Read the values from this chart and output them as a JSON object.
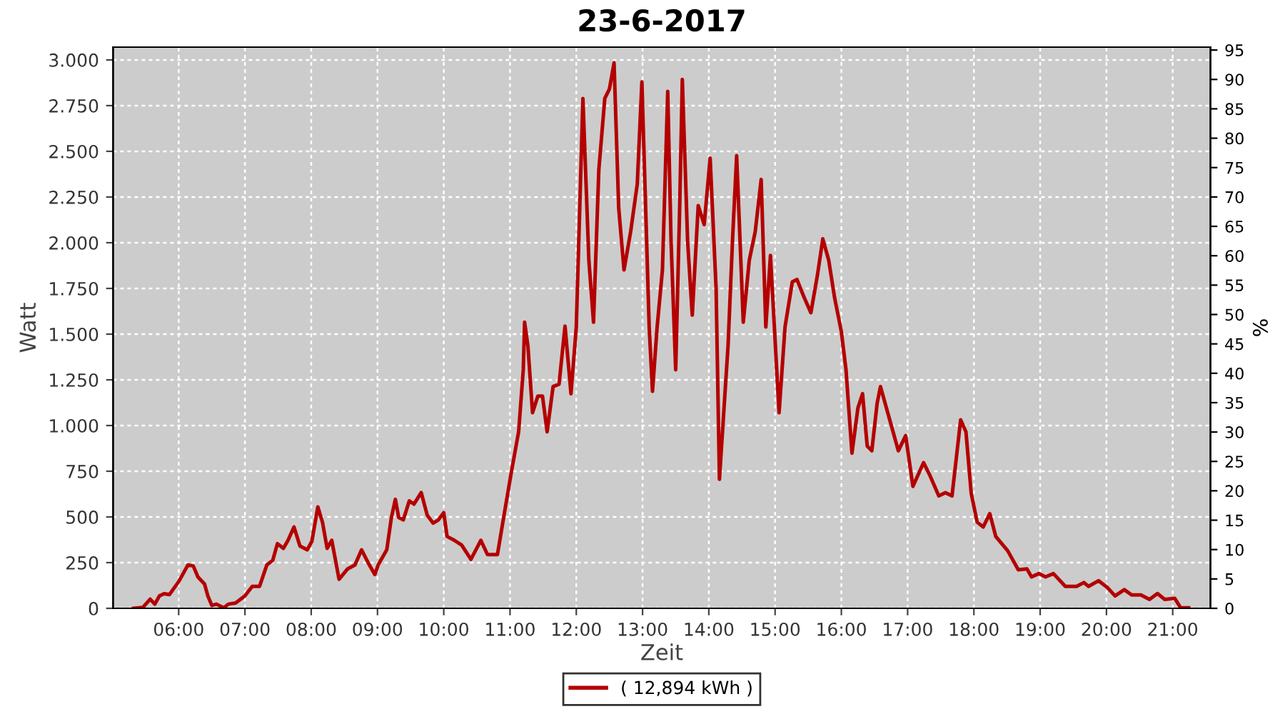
{
  "chart_data": {
    "type": "line",
    "title": "23-6-2017",
    "xlabel": "Zeit",
    "ylabel": "Watt",
    "y2label": "%",
    "xlim": [
      5.01,
      21.57
    ],
    "xticks": [
      {
        "value": 6,
        "label": "06:00"
      },
      {
        "value": 7,
        "label": "07:00"
      },
      {
        "value": 8,
        "label": "08:00"
      },
      {
        "value": 9,
        "label": "09:00"
      },
      {
        "value": 10,
        "label": "10:00"
      },
      {
        "value": 11,
        "label": "11:00"
      },
      {
        "value": 12,
        "label": "12:00"
      },
      {
        "value": 13,
        "label": "13:00"
      },
      {
        "value": 14,
        "label": "14:00"
      },
      {
        "value": 15,
        "label": "15:00"
      },
      {
        "value": 16,
        "label": "16:00"
      },
      {
        "value": 17,
        "label": "17:00"
      },
      {
        "value": 18,
        "label": "18:00"
      },
      {
        "value": 19,
        "label": "19:00"
      },
      {
        "value": 20,
        "label": "20:00"
      },
      {
        "value": 21,
        "label": "21:00"
      }
    ],
    "ylim": [
      0,
      3070
    ],
    "yticks": [
      0,
      250,
      500,
      750,
      {
        "value": 1000,
        "label": "1.000"
      },
      {
        "value": 1250,
        "label": "1.250"
      },
      {
        "value": 1500,
        "label": "1.500"
      },
      {
        "value": 1750,
        "label": "1.750"
      },
      {
        "value": 2000,
        "label": "2.000"
      },
      {
        "value": 2250,
        "label": "2.250"
      },
      {
        "value": 2500,
        "label": "2.500"
      },
      {
        "value": 2750,
        "label": "2.750"
      },
      {
        "value": 3000,
        "label": "3.000"
      }
    ],
    "y2lim": [
      0,
      95.5
    ],
    "y2ticks": [
      0,
      5,
      10,
      15,
      20,
      25,
      30,
      35,
      40,
      45,
      50,
      55,
      60,
      65,
      70,
      75,
      80,
      85,
      90,
      95
    ],
    "grid": true,
    "legend": "bottom",
    "line_style": "solid",
    "marker": "none",
    "series": [
      {
        "name": "( 12,894 kWh )",
        "color": "#b40000",
        "x": [
          5.32,
          5.46,
          5.57,
          5.64,
          5.71,
          5.78,
          5.86,
          6.0,
          6.14,
          6.22,
          6.29,
          6.39,
          6.44,
          6.5,
          6.57,
          6.68,
          6.75,
          6.86,
          7.0,
          7.11,
          7.22,
          7.33,
          7.42,
          7.49,
          7.58,
          7.65,
          7.74,
          7.83,
          7.94,
          8.01,
          8.1,
          8.17,
          8.24,
          8.31,
          8.42,
          8.55,
          8.66,
          8.76,
          8.87,
          8.96,
          9.01,
          9.14,
          9.21,
          9.27,
          9.32,
          9.39,
          9.48,
          9.55,
          9.66,
          9.75,
          9.84,
          9.92,
          10.0,
          10.05,
          10.16,
          10.27,
          10.41,
          10.56,
          10.66,
          10.81,
          10.91,
          11.02,
          11.13,
          11.2,
          11.22,
          11.27,
          11.34,
          11.42,
          11.49,
          11.56,
          11.65,
          11.74,
          11.83,
          11.92,
          12.0,
          12.1,
          12.19,
          12.26,
          12.34,
          12.43,
          12.5,
          12.57,
          12.64,
          12.72,
          12.82,
          12.92,
          12.99,
          13.1,
          13.15,
          13.22,
          13.3,
          13.38,
          13.43,
          13.5,
          13.56,
          13.6,
          13.68,
          13.75,
          13.84,
          13.93,
          14.02,
          14.11,
          14.16,
          14.29,
          14.36,
          14.42,
          14.52,
          14.61,
          14.7,
          14.79,
          14.86,
          14.93,
          15.06,
          15.15,
          15.26,
          15.33,
          15.43,
          15.54,
          15.64,
          15.72,
          15.81,
          15.9,
          16.0,
          16.07,
          16.16,
          16.25,
          16.32,
          16.39,
          16.46,
          16.54,
          16.59,
          16.72,
          16.86,
          16.97,
          17.08,
          17.24,
          17.33,
          17.47,
          17.57,
          17.67,
          17.8,
          17.88,
          17.96,
          18.05,
          18.14,
          18.24,
          18.33,
          18.51,
          18.67,
          18.8,
          18.87,
          18.98,
          19.08,
          19.2,
          19.38,
          19.55,
          19.66,
          19.73,
          19.88,
          20.02,
          20.13,
          20.27,
          20.38,
          20.52,
          20.65,
          20.77,
          20.88,
          21.03,
          21.12,
          21.24
        ],
        "values": [
          0,
          5,
          50,
          23,
          68,
          80,
          75,
          146,
          237,
          232,
          172,
          133,
          68,
          16,
          23,
          3,
          23,
          29,
          68,
          120,
          120,
          237,
          263,
          354,
          328,
          372,
          445,
          341,
          320,
          367,
          555,
          471,
          328,
          372,
          159,
          216,
          237,
          320,
          242,
          185,
          237,
          320,
          497,
          596,
          497,
          484,
          588,
          570,
          633,
          510,
          466,
          484,
          523,
          393,
          372,
          346,
          268,
          372,
          294,
          294,
          510,
          745,
          966,
          1305,
          1565,
          1435,
          1070,
          1161,
          1161,
          966,
          1213,
          1226,
          1544,
          1174,
          1539,
          2789,
          1903,
          1565,
          2398,
          2789,
          2841,
          2984,
          2190,
          1851,
          2060,
          2320,
          2880,
          1539,
          1187,
          1539,
          1851,
          2828,
          2008,
          1305,
          2190,
          2893,
          2008,
          1604,
          2203,
          2099,
          2463,
          1747,
          706,
          1435,
          2034,
          2476,
          1565,
          1903,
          2060,
          2346,
          1539,
          1930,
          1070,
          1539,
          1786,
          1799,
          1708,
          1617,
          1825,
          2021,
          1903,
          1695,
          1513,
          1305,
          849,
          1096,
          1174,
          888,
          862,
          1122,
          1213,
          1044,
          862,
          945,
          667,
          797,
          732,
          615,
          633,
          615,
          1031,
          966,
          628,
          471,
          445,
          518,
          393,
          315,
          211,
          216,
          172,
          190,
          172,
          190,
          120,
          120,
          141,
          120,
          151,
          112,
          68,
          102,
          73,
          73,
          49,
          81,
          49,
          55,
          3,
          3
        ]
      }
    ]
  }
}
